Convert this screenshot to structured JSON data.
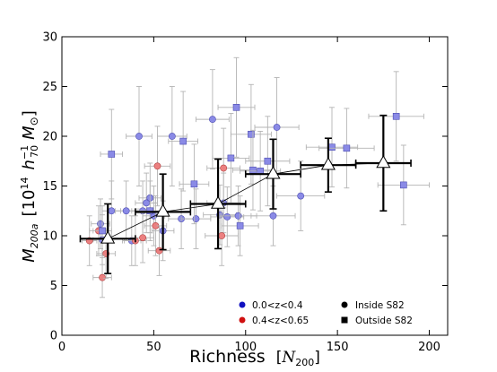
{
  "chart_data": {
    "type": "scatter",
    "title": "",
    "xlabel": "Richness",
    "xlabel_math": "N",
    "xlabel_sub": "200",
    "ylabel_math": "M",
    "ylabel_sub": "200a",
    "ylabel_unit_exp": "14",
    "ylabel_unit_h": "h",
    "ylabel_unit_hsub": "70",
    "ylabel_unit_hexp": "−1",
    "ylabel_unit_msun": "M",
    "ylabel_unit_odot": "⊙",
    "ylabel_unit_ten": "10",
    "xlim": [
      0,
      210
    ],
    "ylim": [
      0,
      30
    ],
    "xticks": [
      0,
      50,
      100,
      150,
      200
    ],
    "yticks": [
      0,
      5,
      10,
      15,
      20,
      25,
      30
    ],
    "grid": false,
    "legend": {
      "placement": "lower-right",
      "entries": [
        {
          "label": "0.0<z<0.4",
          "marker": "circle",
          "color": "#1010c0"
        },
        {
          "label": "0.4<z<0.65",
          "marker": "circle",
          "color": "#d01010"
        },
        {
          "label": "Inside S82",
          "marker": "circle",
          "color": "#000000"
        },
        {
          "label": "Outside S82",
          "marker": "square",
          "color": "#000000"
        }
      ]
    },
    "colors": {
      "low_z_fill": "#8a8ae6",
      "low_z_edge": "#4b4bb0",
      "high_z_fill": "#ec8080",
      "high_z_edge": "#b04040",
      "errorbar": "#b4b4b4",
      "binned": "#000000"
    },
    "series": [
      {
        "name": "0.0<z<0.4",
        "marker": "circle",
        "points": [
          {
            "x": 21,
            "y": 11.2,
            "xerr": 5,
            "yerr": 2.5
          },
          {
            "x": 22,
            "y": 9.6,
            "xerr": 5,
            "yerr": 2.5
          },
          {
            "x": 27,
            "y": 12.5,
            "xerr": 5,
            "yerr": 3
          },
          {
            "x": 35,
            "y": 12.5,
            "xerr": 6,
            "yerr": 3
          },
          {
            "x": 38,
            "y": 9.5,
            "xerr": 5,
            "yerr": 2.5
          },
          {
            "x": 42,
            "y": 20.0,
            "xerr": 7,
            "yerr": 5
          },
          {
            "x": 44,
            "y": 12.5,
            "xerr": 6,
            "yerr": 3
          },
          {
            "x": 46,
            "y": 13.3,
            "xerr": 6,
            "yerr": 3
          },
          {
            "x": 48,
            "y": 13.8,
            "xerr": 6,
            "yerr": 3.5
          },
          {
            "x": 50,
            "y": 12.0,
            "xerr": 6,
            "yerr": 3
          },
          {
            "x": 55,
            "y": 10.5,
            "xerr": 6,
            "yerr": 3
          },
          {
            "x": 60,
            "y": 20.0,
            "xerr": 8,
            "yerr": 5
          },
          {
            "x": 65,
            "y": 11.7,
            "xerr": 7,
            "yerr": 3
          },
          {
            "x": 73,
            "y": 11.7,
            "xerr": 8,
            "yerr": 3
          },
          {
            "x": 82,
            "y": 21.7,
            "xerr": 9,
            "yerr": 5
          },
          {
            "x": 86,
            "y": 12.1,
            "xerr": 9,
            "yerr": 3
          },
          {
            "x": 88,
            "y": 13.3,
            "xerr": 9,
            "yerr": 3
          },
          {
            "x": 90,
            "y": 11.9,
            "xerr": 9,
            "yerr": 3
          },
          {
            "x": 96,
            "y": 12.0,
            "xerr": 10,
            "yerr": 3
          },
          {
            "x": 115,
            "y": 12.0,
            "xerr": 12,
            "yerr": 3
          },
          {
            "x": 117,
            "y": 20.9,
            "xerr": 12,
            "yerr": 5
          },
          {
            "x": 130,
            "y": 14.0,
            "xerr": 13,
            "yerr": 3.5
          }
        ]
      },
      {
        "name": "0.4<z<0.65",
        "marker": "circle",
        "points": [
          {
            "x": 15,
            "y": 9.5,
            "xerr": 4,
            "yerr": 2.5
          },
          {
            "x": 20,
            "y": 10.5,
            "xerr": 5,
            "yerr": 2.5
          },
          {
            "x": 22,
            "y": 5.8,
            "xerr": 5,
            "yerr": 2
          },
          {
            "x": 24,
            "y": 8.2,
            "xerr": 5,
            "yerr": 2.5
          },
          {
            "x": 40,
            "y": 9.5,
            "xerr": 6,
            "yerr": 2.5
          },
          {
            "x": 44,
            "y": 9.8,
            "xerr": 6,
            "yerr": 2.5
          },
          {
            "x": 51,
            "y": 11.0,
            "xerr": 6,
            "yerr": 3
          },
          {
            "x": 52,
            "y": 17.0,
            "xerr": 7,
            "yerr": 4
          },
          {
            "x": 53,
            "y": 8.5,
            "xerr": 6,
            "yerr": 2.5
          },
          {
            "x": 87,
            "y": 10.0,
            "xerr": 9,
            "yerr": 3
          },
          {
            "x": 88,
            "y": 16.8,
            "xerr": 9,
            "yerr": 4
          }
        ]
      },
      {
        "name": "Outside S82",
        "marker": "square",
        "points": [
          {
            "x": 22,
            "y": 10.5,
            "xerr": 5,
            "yerr": 2.5
          },
          {
            "x": 27,
            "y": 18.2,
            "xerr": 6,
            "yerr": 4.5
          },
          {
            "x": 48,
            "y": 12.5,
            "xerr": 6,
            "yerr": 3
          },
          {
            "x": 66,
            "y": 19.5,
            "xerr": 8,
            "yerr": 5
          },
          {
            "x": 72,
            "y": 15.2,
            "xerr": 8,
            "yerr": 4
          },
          {
            "x": 92,
            "y": 17.8,
            "xerr": 10,
            "yerr": 4.5
          },
          {
            "x": 95,
            "y": 22.9,
            "xerr": 10,
            "yerr": 5
          },
          {
            "x": 97,
            "y": 11.0,
            "xerr": 10,
            "yerr": 3
          },
          {
            "x": 103,
            "y": 20.2,
            "xerr": 11,
            "yerr": 5
          },
          {
            "x": 104,
            "y": 16.6,
            "xerr": 11,
            "yerr": 4
          },
          {
            "x": 108,
            "y": 16.5,
            "xerr": 11,
            "yerr": 4
          },
          {
            "x": 112,
            "y": 17.5,
            "xerr": 12,
            "yerr": 4.5
          },
          {
            "x": 147,
            "y": 18.9,
            "xerr": 14,
            "yerr": 4
          },
          {
            "x": 155,
            "y": 18.8,
            "xerr": 15,
            "yerr": 4
          },
          {
            "x": 182,
            "y": 22.0,
            "xerr": 15,
            "yerr": 4.5
          },
          {
            "x": 186,
            "y": 15.1,
            "xerr": 14,
            "yerr": 4
          }
        ]
      },
      {
        "name": "binned",
        "marker": "triangle",
        "points": [
          {
            "x": 25,
            "y": 9.7,
            "xlo": 10,
            "xhi": 40,
            "yerr": 3.5
          },
          {
            "x": 55,
            "y": 12.4,
            "xlo": 40,
            "xhi": 70,
            "yerr": 3.8
          },
          {
            "x": 85,
            "y": 13.2,
            "xlo": 70,
            "xhi": 100,
            "yerr": 4.5
          },
          {
            "x": 115,
            "y": 16.2,
            "xlo": 100,
            "xhi": 130,
            "yerr": 3.5
          },
          {
            "x": 145,
            "y": 17.1,
            "xlo": 130,
            "xhi": 160,
            "yerr": 2.7
          },
          {
            "x": 175,
            "y": 17.3,
            "xlo": 160,
            "xhi": 190,
            "yerr": 4.8
          }
        ]
      }
    ]
  }
}
